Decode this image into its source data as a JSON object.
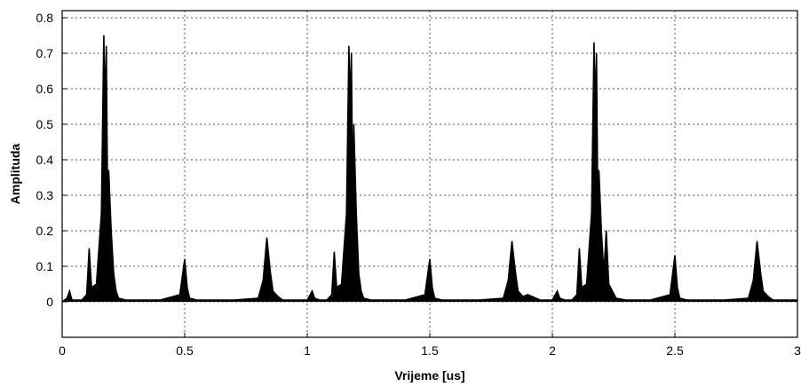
{
  "chart_data": {
    "type": "line",
    "title": "",
    "xlabel": "Vrijeme [us]",
    "ylabel": "Amplituda",
    "xlim": [
      0,
      3
    ],
    "ylim": [
      -0.1,
      0.82
    ],
    "xticks": [
      "0",
      "0.5",
      "1",
      "1.5",
      "2",
      "2.5",
      "3"
    ],
    "yticks": [
      "0",
      "0.1",
      "0.2",
      "0.3",
      "0.4",
      "0.5",
      "0.6",
      "0.7",
      "0.8"
    ],
    "grid": true,
    "series": [
      {
        "x": [
          0,
          0.02,
          0.03,
          0.04,
          0.08,
          0.1,
          0.11,
          0.12,
          0.14,
          0.16,
          0.17,
          0.175,
          0.18,
          0.185,
          0.19,
          0.2,
          0.21,
          0.22,
          0.23,
          0.26,
          0.3,
          0.4,
          0.48,
          0.5,
          0.51,
          0.52,
          0.55,
          0.7,
          0.8,
          0.82,
          0.835,
          0.85,
          0.86,
          0.88,
          0.9,
          1.0,
          1.02,
          1.03,
          1.05,
          1.08,
          1.1,
          1.11,
          1.12,
          1.14,
          1.16,
          1.17,
          1.175,
          1.18,
          1.185,
          1.19,
          1.2,
          1.21,
          1.22,
          1.23,
          1.26,
          1.3,
          1.4,
          1.48,
          1.5,
          1.51,
          1.52,
          1.55,
          1.7,
          1.8,
          1.82,
          1.835,
          1.85,
          1.86,
          1.88,
          1.9,
          1.95,
          2.0,
          2.02,
          2.03,
          2.05,
          2.08,
          2.1,
          2.11,
          2.12,
          2.14,
          2.16,
          2.17,
          2.175,
          2.18,
          2.185,
          2.19,
          2.2,
          2.21,
          2.22,
          2.23,
          2.26,
          2.3,
          2.4,
          2.48,
          2.5,
          2.51,
          2.52,
          2.55,
          2.7,
          2.8,
          2.82,
          2.835,
          2.85,
          2.86,
          2.88,
          2.9,
          3.0
        ],
        "y": [
          0,
          0.01,
          0.03,
          0.005,
          0.005,
          0.02,
          0.15,
          0.04,
          0.05,
          0.25,
          0.75,
          0.55,
          0.72,
          0.3,
          0.37,
          0.2,
          0.08,
          0.03,
          0.01,
          0.005,
          0.005,
          0.005,
          0.02,
          0.12,
          0.04,
          0.01,
          0.005,
          0.005,
          0.01,
          0.06,
          0.18,
          0.08,
          0.03,
          0.015,
          0.005,
          0.005,
          0.03,
          0.01,
          0.005,
          0.005,
          0.02,
          0.14,
          0.04,
          0.05,
          0.25,
          0.72,
          0.55,
          0.7,
          0.3,
          0.5,
          0.25,
          0.08,
          0.03,
          0.01,
          0.005,
          0.005,
          0.005,
          0.02,
          0.12,
          0.04,
          0.01,
          0.005,
          0.005,
          0.01,
          0.06,
          0.17,
          0.08,
          0.03,
          0.015,
          0.02,
          0.005,
          0.005,
          0.03,
          0.01,
          0.005,
          0.005,
          0.02,
          0.15,
          0.04,
          0.05,
          0.25,
          0.73,
          0.55,
          0.7,
          0.3,
          0.37,
          0.2,
          0.08,
          0.2,
          0.05,
          0.01,
          0.005,
          0.005,
          0.02,
          0.13,
          0.04,
          0.01,
          0.005,
          0.005,
          0.01,
          0.06,
          0.17,
          0.08,
          0.03,
          0.015,
          0.005,
          0.005
        ]
      }
    ]
  }
}
